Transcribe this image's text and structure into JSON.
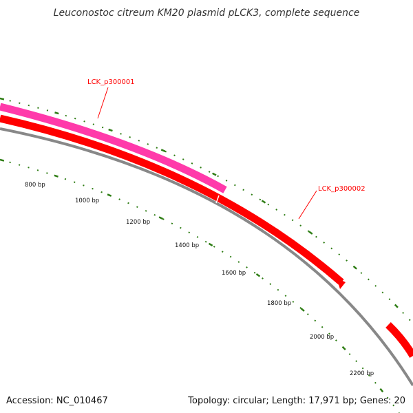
{
  "title": "Leuconostoc citreum KM20 plasmid pLCK3, complete sequence",
  "footer": {
    "accession": "Accession: NC_010467",
    "summary": "Topology: circular; Length: 17,971 bp; Genes: 20"
  },
  "genes": [
    {
      "name": "LCK_p300001",
      "color": "#ff3aaa",
      "label_shown": true
    },
    {
      "name": "LCK_p300002",
      "color": "#ff0000",
      "label_shown": true
    },
    {
      "name": "",
      "color": "#ff0000",
      "label_shown": false
    }
  ],
  "tick_labels": [
    "800 bp",
    "1000 bp",
    "1200 bp",
    "1400 bp",
    "1600 bp",
    "1800 bp",
    "2000 bp",
    "2200 bp"
  ],
  "colors": {
    "tick": "#2e7d14",
    "backbone": "#888888",
    "forward_gene": "#ff3aaa",
    "reverse_gene": "#ff0000"
  }
}
